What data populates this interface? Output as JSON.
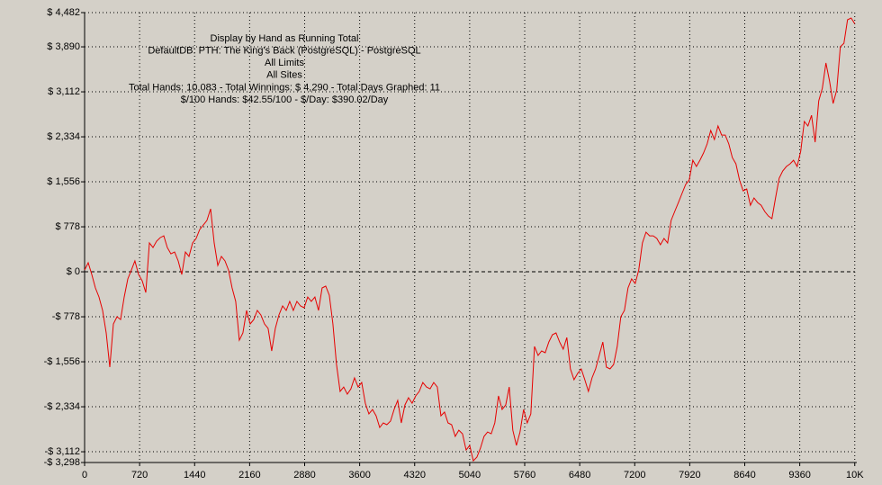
{
  "chart_data": {
    "type": "line",
    "annotations": [
      "Display by Hand as Running Total",
      "DefaultDB: PTH: The King's Back (PostgreSQL) - PostgreSQL",
      "All Limits",
      "All Sites",
      "Total Hands: 10,083 - Total Winnings: $ 4,290 - Total Days Graphed: 11",
      "$/100 Hands: $42.55/100 - $/Day: $390.02/Day"
    ],
    "x": [
      0,
      47,
      94,
      141,
      188,
      236,
      283,
      330,
      377,
      424,
      471,
      518,
      565,
      612,
      659,
      707,
      754,
      801,
      848,
      895,
      942,
      989,
      1036,
      1083,
      1130,
      1178,
      1225,
      1272,
      1319,
      1366,
      1413,
      1460,
      1507,
      1554,
      1601,
      1649,
      1696,
      1743,
      1790,
      1837,
      1884,
      1931,
      1978,
      2025,
      2072,
      2120,
      2167,
      2214,
      2261,
      2308,
      2355,
      2402,
      2449,
      2496,
      2543,
      2591,
      2638,
      2685,
      2732,
      2779,
      2826,
      2873,
      2920,
      2967,
      3014,
      3062,
      3109,
      3156,
      3203,
      3250,
      3297,
      3344,
      3391,
      3438,
      3485,
      3533,
      3580,
      3627,
      3674,
      3721,
      3768,
      3815,
      3862,
      3909,
      3956,
      4004,
      4051,
      4098,
      4145,
      4192,
      4239,
      4286,
      4333,
      4380,
      4427,
      4475,
      4522,
      4569,
      4616,
      4663,
      4710,
      4757,
      4804,
      4851,
      4898,
      4946,
      4993,
      5040,
      5087,
      5134,
      5181,
      5228,
      5275,
      5322,
      5369,
      5417,
      5464,
      5511,
      5558,
      5605,
      5652,
      5699,
      5746,
      5793,
      5840,
      5888,
      5935,
      5982,
      6029,
      6076,
      6123,
      6170,
      6217,
      6264,
      6311,
      6359,
      6406,
      6453,
      6500,
      6547,
      6594,
      6641,
      6688,
      6735,
      6782,
      6830,
      6877,
      6924,
      6971,
      7018,
      7065,
      7112,
      7159,
      7206,
      7253,
      7301,
      7348,
      7395,
      7442,
      7489,
      7536,
      7583,
      7630,
      7677,
      7724,
      7772,
      7819,
      7866,
      7913,
      7960,
      8007,
      8054,
      8101,
      8148,
      8195,
      8243,
      8290,
      8337,
      8384,
      8431,
      8478,
      8525,
      8572,
      8619,
      8666,
      8714,
      8761,
      8808,
      8855,
      8902,
      8949,
      8996,
      9043,
      9090,
      9137,
      9185,
      9232,
      9279,
      9326,
      9373,
      9420,
      9467,
      9514,
      9561,
      9608,
      9656,
      9703,
      9750,
      9797,
      9844,
      9891,
      9938,
      9985,
      10032,
      10079
    ],
    "series": [
      {
        "color": "#e60000",
        "values": [
          31,
          156,
          -47,
          -280,
          -436,
          -669,
          -1058,
          -1649,
          -902,
          -778,
          -825,
          -436,
          -124,
          31,
          187,
          -47,
          -156,
          -358,
          498,
          420,
          529,
          591,
          622,
          420,
          311,
          342,
          187,
          -47,
          342,
          265,
          498,
          576,
          731,
          809,
          887,
          1089,
          498,
          109,
          265,
          187,
          31,
          -280,
          -513,
          -1183,
          -1058,
          -669,
          -902,
          -825,
          -669,
          -747,
          -902,
          -980,
          -1369,
          -980,
          -747,
          -591,
          -669,
          -513,
          -669,
          -513,
          -591,
          -622,
          -436,
          -513,
          -436,
          -669,
          -280,
          -249,
          -405,
          -902,
          -1603,
          -2069,
          -1992,
          -2116,
          -2023,
          -1836,
          -1992,
          -1914,
          -2272,
          -2458,
          -2381,
          -2490,
          -2692,
          -2614,
          -2645,
          -2583,
          -2381,
          -2225,
          -2614,
          -2303,
          -2178,
          -2272,
          -2147,
          -2069,
          -1914,
          -1992,
          -2023,
          -1914,
          -1992,
          -2490,
          -2427,
          -2614,
          -2645,
          -2847,
          -2739,
          -2801,
          -3081,
          -3003,
          -3268,
          -3205,
          -3050,
          -2847,
          -2770,
          -2801,
          -2614,
          -2147,
          -2381,
          -2303,
          -1992,
          -2739,
          -3003,
          -2770,
          -2381,
          -2614,
          -2458,
          -1291,
          -1447,
          -1369,
          -1400,
          -1214,
          -1089,
          -1058,
          -1214,
          -1338,
          -1136,
          -1680,
          -1867,
          -1758,
          -1680,
          -1867,
          -2069,
          -1836,
          -1680,
          -1447,
          -1214,
          -1649,
          -1680,
          -1603,
          -1291,
          -778,
          -669,
          -280,
          -124,
          -202,
          31,
          498,
          685,
          622,
          622,
          576,
          467,
          576,
          498,
          887,
          1043,
          1198,
          1354,
          1509,
          1587,
          1929,
          1821,
          1929,
          2054,
          2210,
          2443,
          2287,
          2521,
          2365,
          2365,
          2210,
          1976,
          1867,
          1587,
          1400,
          1432,
          1151,
          1276,
          1198,
          1151,
          1043,
          965,
          918,
          1276,
          1618,
          1743,
          1821,
          1867,
          1929,
          1821,
          2085,
          2599,
          2521,
          2707,
          2241,
          2956,
          3174,
          3610,
          3299,
          2910,
          3143,
          3890,
          3952,
          4357,
          4388,
          4290
        ]
      }
    ],
    "xlim": [
      0,
      10083
    ],
    "xticks": [
      0,
      720,
      1440,
      2160,
      2880,
      3600,
      4320,
      5040,
      5760,
      6480,
      7200,
      7920,
      8640,
      9360,
      {
        "value": 10080,
        "label": "10K"
      }
    ],
    "ylim": [
      -3298,
      4482
    ],
    "yticks": [
      {
        "value": 4482,
        "label": "$ 4,482"
      },
      {
        "value": 3890,
        "label": "$ 3,890"
      },
      {
        "value": 3112,
        "label": "$ 3,112"
      },
      {
        "value": 2334,
        "label": "$ 2,334"
      },
      {
        "value": 1556,
        "label": "$ 1,556"
      },
      {
        "value": 778,
        "label": "$ 778"
      },
      {
        "value": 0,
        "label": "$ 0"
      },
      {
        "value": -778,
        "label": "-$ 778"
      },
      {
        "value": -1556,
        "label": "-$ 1,556"
      },
      {
        "value": -2334,
        "label": "-$ 2,334"
      },
      {
        "value": -3112,
        "label": "-$ 3,112"
      },
      {
        "value": -3298,
        "label": "-$ 3,298"
      }
    ],
    "grid": true
  }
}
